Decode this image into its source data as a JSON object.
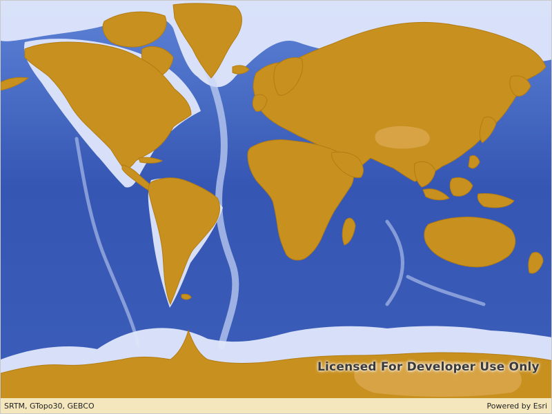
{
  "map": {
    "watermark": "Licensed For Developer Use Only",
    "attribution": {
      "sources": "SRTM, GTopo30, GEBCO",
      "powered_by": "Powered by Esri"
    },
    "colors": {
      "ocean": "#3a61b7",
      "land": "#c8901f",
      "shallow_water": "#dfe7fb",
      "attribution_background": "#fffae1"
    }
  }
}
